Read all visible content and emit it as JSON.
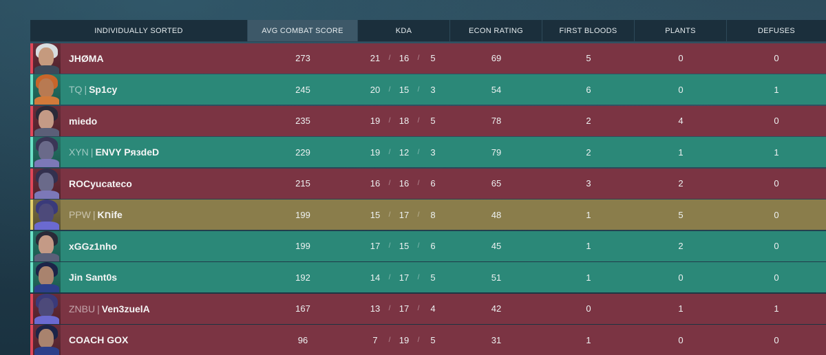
{
  "header": {
    "player": "INDIVIDUALLY SORTED",
    "acs": "AVG COMBAT SCORE",
    "kda": "KDA",
    "econ": "ECON RATING",
    "first_bloods": "FIRST BLOODS",
    "plants": "PLANTS",
    "defuses": "DEFUSES"
  },
  "players": [
    {
      "tag": "",
      "name": "JHØMA",
      "team": "red",
      "acs": "273",
      "k": "21",
      "d": "16",
      "a": "5",
      "econ": "69",
      "fb": "5",
      "plants": "0",
      "defuses": "0",
      "avatar": {
        "skin": "#c59a7e",
        "hair": "#d8dde0",
        "body": "#3c4a5a"
      }
    },
    {
      "tag": "TQ",
      "name": "Sp1cy",
      "team": "teal",
      "acs": "245",
      "k": "20",
      "d": "15",
      "a": "3",
      "econ": "54",
      "fb": "6",
      "plants": "0",
      "defuses": "1",
      "avatar": {
        "skin": "#b87a52",
        "hair": "#c8652a",
        "body": "#d17a3a"
      }
    },
    {
      "tag": "",
      "name": "miedo",
      "team": "red",
      "acs": "235",
      "k": "19",
      "d": "18",
      "a": "5",
      "econ": "78",
      "fb": "2",
      "plants": "4",
      "defuses": "0",
      "avatar": {
        "skin": "#c49a86",
        "hair": "#2a2a38",
        "body": "#5b5f78"
      }
    },
    {
      "tag": "XYN",
      "name": "ENVY PяɜdeD",
      "team": "teal",
      "acs": "229",
      "k": "19",
      "d": "12",
      "a": "3",
      "econ": "79",
      "fb": "2",
      "plants": "1",
      "defuses": "1",
      "avatar": {
        "skin": "#6a6a8a",
        "hair": "#3a3656",
        "body": "#7c78b8"
      }
    },
    {
      "tag": "",
      "name": "ROCyucateco",
      "team": "red",
      "acs": "215",
      "k": "16",
      "d": "16",
      "a": "6",
      "econ": "65",
      "fb": "3",
      "plants": "2",
      "defuses": "0",
      "avatar": {
        "skin": "#6a6a8a",
        "hair": "#33304e",
        "body": "#7c78b8"
      }
    },
    {
      "tag": "PPW",
      "name": "Kחife",
      "team": "gold",
      "acs": "199",
      "k": "15",
      "d": "17",
      "a": "8",
      "econ": "48",
      "fb": "1",
      "plants": "5",
      "defuses": "0",
      "avatar": {
        "skin": "#4d4a7a",
        "hair": "#3a3a7a",
        "body": "#6b6ad0"
      }
    },
    {
      "tag": "",
      "name": "xGGz1nho",
      "team": "teal",
      "acs": "199",
      "k": "17",
      "d": "15",
      "a": "6",
      "econ": "45",
      "fb": "1",
      "plants": "2",
      "defuses": "0",
      "avatar": {
        "skin": "#c49a86",
        "hair": "#2a2a38",
        "body": "#5b5f78"
      }
    },
    {
      "tag": "",
      "name": "Jin Sant0s",
      "team": "teal",
      "acs": "192",
      "k": "14",
      "d": "17",
      "a": "5",
      "econ": "51",
      "fb": "1",
      "plants": "0",
      "defuses": "0",
      "avatar": {
        "skin": "#a9836e",
        "hair": "#1c2448",
        "body": "#2c3f8a"
      }
    },
    {
      "tag": "ZNBU",
      "name": "Ven3zuelA",
      "team": "red",
      "acs": "167",
      "k": "13",
      "d": "17",
      "a": "4",
      "econ": "42",
      "fb": "0",
      "plants": "1",
      "defuses": "1",
      "avatar": {
        "skin": "#4d4a7a",
        "hair": "#3a3a7a",
        "body": "#6b6ad0"
      }
    },
    {
      "tag": "",
      "name": "COACH GOX",
      "team": "red",
      "acs": "96",
      "k": "7",
      "d": "19",
      "a": "5",
      "econ": "31",
      "fb": "1",
      "plants": "0",
      "defuses": "0",
      "avatar": {
        "skin": "#a9836e",
        "hair": "#1c2448",
        "body": "#2c3f8a"
      }
    }
  ],
  "team_colors": {
    "red": "#7b3443",
    "teal": "#2b8878",
    "gold": "#8a7d4b"
  }
}
